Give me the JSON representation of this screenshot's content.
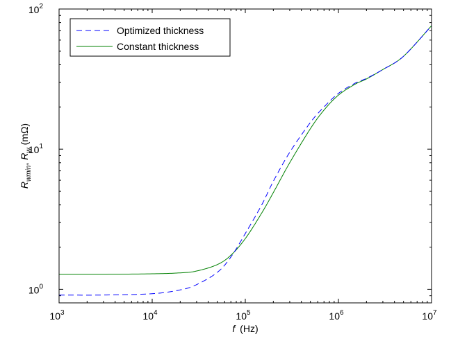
{
  "chart_data": {
    "type": "line",
    "xlabel_var": "f",
    "xlabel_unit": "(Hz)",
    "ylabel": {
      "var1": "R",
      "sub1": "wmin",
      "sep": ",",
      "var2": "R",
      "sub2": "w",
      "unit": "(mΩ)"
    },
    "x_scale": "log",
    "y_scale": "log",
    "xlim": [
      1000,
      10000000
    ],
    "ylim": [
      0.8,
      100
    ],
    "x_ticks": [
      {
        "base": "10",
        "exp": "3",
        "value": 1000
      },
      {
        "base": "10",
        "exp": "4",
        "value": 10000
      },
      {
        "base": "10",
        "exp": "5",
        "value": 100000
      },
      {
        "base": "10",
        "exp": "6",
        "value": 1000000
      },
      {
        "base": "10",
        "exp": "7",
        "value": 10000000
      }
    ],
    "y_ticks": [
      {
        "base": "10",
        "exp": "0",
        "value": 1
      },
      {
        "base": "10",
        "exp": "1",
        "value": 10
      },
      {
        "base": "10",
        "exp": "2",
        "value": 100
      }
    ],
    "grid": false,
    "legend_position": "top-left",
    "series": [
      {
        "name": "Optimized thickness",
        "color": "#0000ff",
        "dash": "dashed",
        "x": [
          1000,
          3000,
          10000,
          20000,
          30000,
          50000,
          70000,
          100000,
          150000,
          200000,
          300000,
          500000,
          700000,
          1000000,
          1500000,
          2000000,
          3000000,
          5000000,
          10000000
        ],
        "y": [
          0.91,
          0.91,
          0.93,
          0.99,
          1.08,
          1.32,
          1.7,
          2.5,
          4.0,
          5.9,
          9.5,
          15.5,
          20.0,
          25.0,
          29.5,
          32.0,
          37.0,
          46.0,
          76.0
        ]
      },
      {
        "name": "Constant thickness",
        "color": "#008000",
        "dash": "solid",
        "x": [
          1000,
          3000,
          10000,
          20000,
          30000,
          50000,
          70000,
          100000,
          150000,
          200000,
          300000,
          500000,
          700000,
          1000000,
          1500000,
          2000000,
          3000000,
          5000000,
          10000000
        ],
        "y": [
          1.28,
          1.28,
          1.29,
          1.31,
          1.35,
          1.5,
          1.75,
          2.3,
          3.5,
          4.9,
          8.0,
          14.0,
          19.0,
          24.3,
          29.0,
          31.7,
          37.0,
          46.0,
          76.0
        ]
      }
    ]
  }
}
